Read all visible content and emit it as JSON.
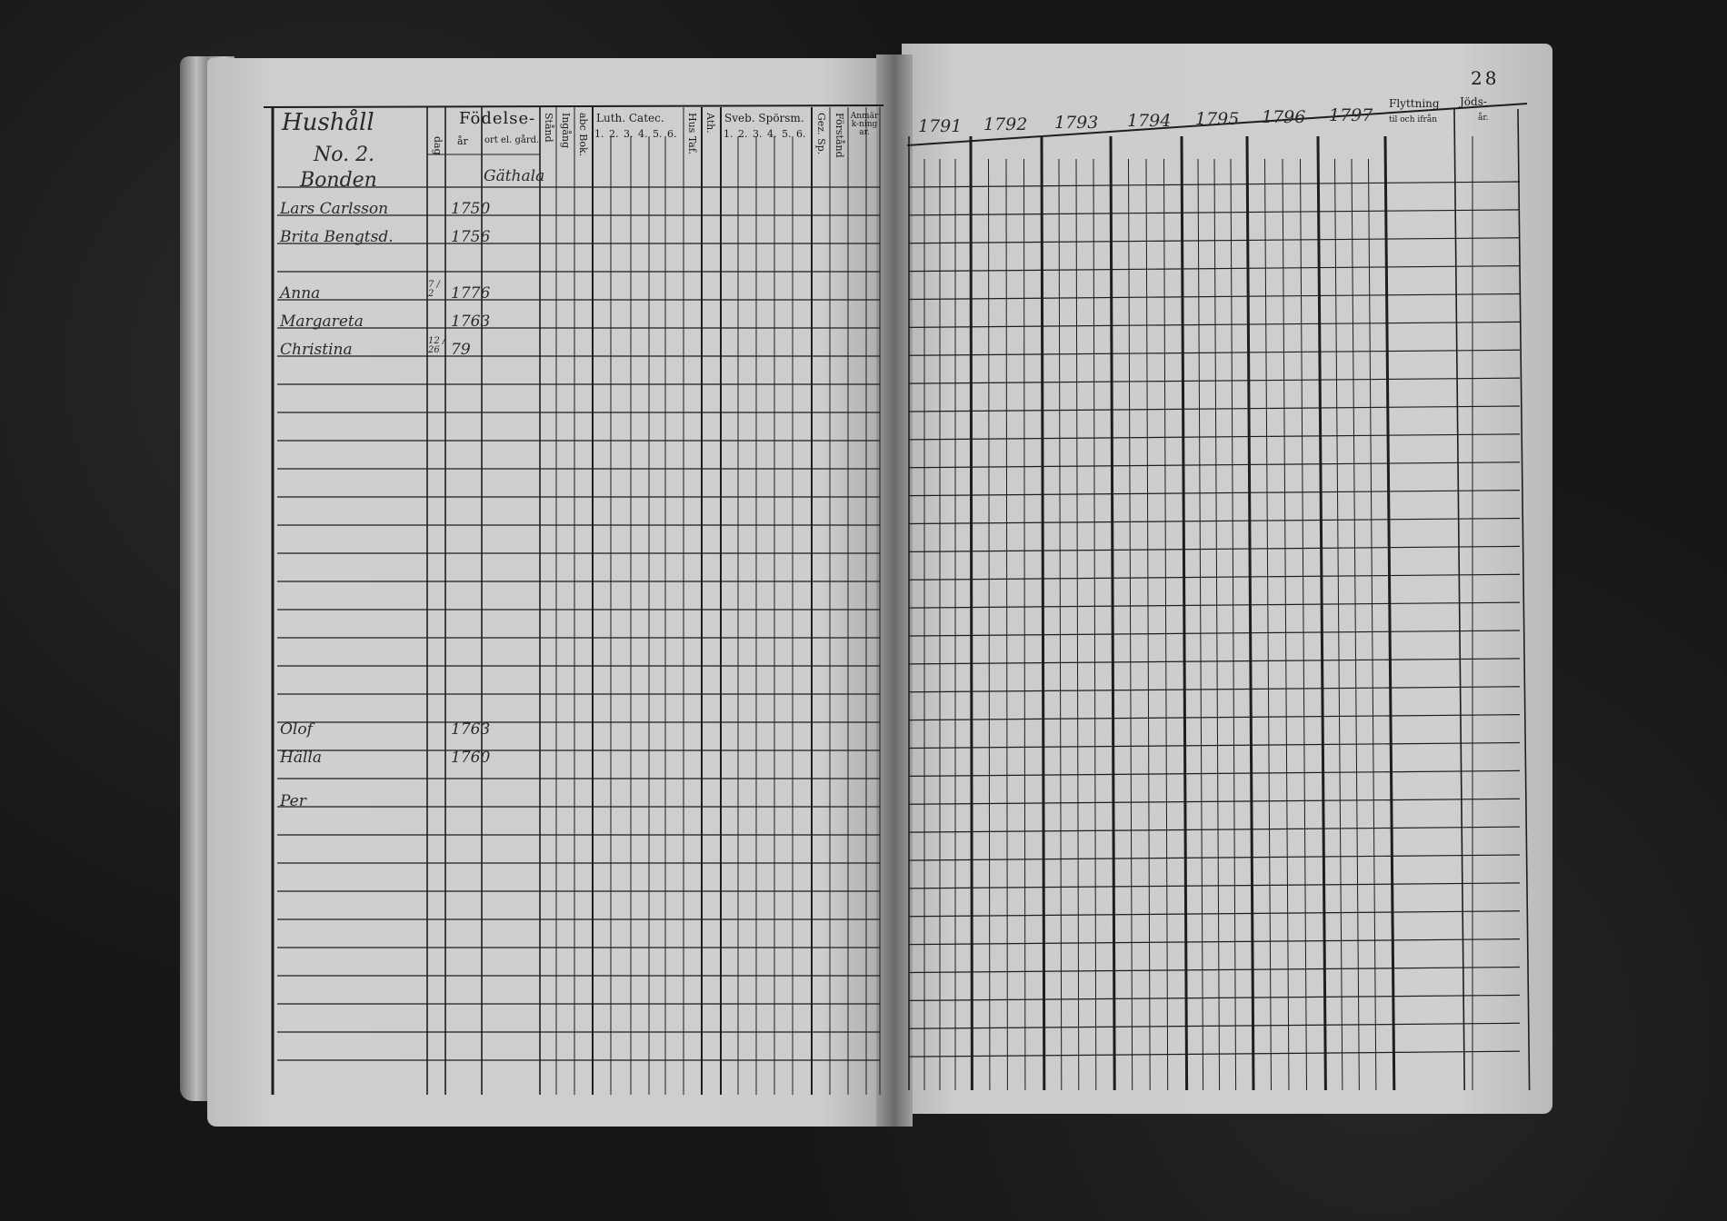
{
  "document": {
    "page_number": "28",
    "left_page": {
      "header": {
        "household": "Hushåll",
        "household_no": "No. 2.",
        "place": "Bonden",
        "birth_group": "Födelse-",
        "birth_cols": [
          "dag",
          "år",
          "ort el. gård."
        ],
        "vertical_cols": [
          "Stånd",
          "Ingång",
          "abc Bok."
        ],
        "luth_catec": "Luth. Catec.",
        "luth_cols": [
          "1.",
          "2.",
          "3.",
          "4.",
          "5.",
          "6."
        ],
        "hus_tafla": "Hus Taf.",
        "atlas": "Ath.",
        "sveb_sporsm": "Sveb. Spörsm.",
        "sveb_cols": [
          "1.",
          "2.",
          "3.",
          "4.",
          "5.",
          "6."
        ],
        "gez_sp": "Gez. Sp.",
        "forstand": "Förstånd",
        "anmarkningar": "Anmärk-ningar."
      },
      "birthplace_entry": "Gäthala",
      "entries": [
        {
          "name": "Lars Carlsson",
          "day": "",
          "year": "1750"
        },
        {
          "name": "Brita Bengtsd.",
          "day": "",
          "year": "1756"
        },
        {
          "name": "Anna",
          "day": "7 / 2",
          "year": "1776"
        },
        {
          "name": "Margareta",
          "day": "",
          "year": "1763"
        },
        {
          "name": "Christina",
          "day": "12 / 26",
          "year": "79"
        },
        {
          "name": "Olof",
          "day": "",
          "year": "1763"
        },
        {
          "name": "Hälla",
          "day": "",
          "year": "1760"
        },
        {
          "name": "Per",
          "day": "",
          "year": ""
        }
      ]
    },
    "right_page": {
      "years": [
        "1791",
        "1792",
        "1793",
        "1794",
        "1795",
        "1796",
        "1797"
      ],
      "flyttning": "Flyttning",
      "flyttning_sub": "til och ifrån",
      "jods": "Jöds-",
      "jods_sub": "år."
    }
  }
}
